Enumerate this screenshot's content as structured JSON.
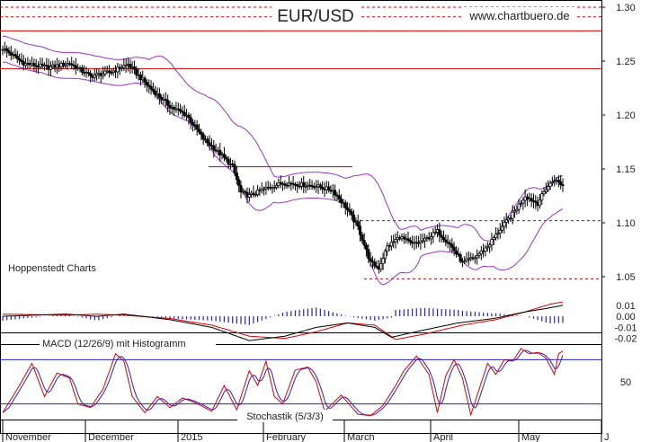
{
  "title": "EUR/USD",
  "watermark": "www.chartbuero.de",
  "source_label": "Hoppenstedt Charts",
  "colors": {
    "background": "#ffffff",
    "candle": "#000000",
    "bollinger": "#9933cc",
    "resistance": "#cc0000",
    "macd": "#000000",
    "signal": "#dd0000",
    "histogram": "#2222cc",
    "stoch_k": "#dd0000",
    "stoch_d": "#2222cc",
    "stoch_band": "#2222cc"
  },
  "chart_data": [
    {
      "type": "candlestick",
      "title": "EUR/USD",
      "x_ticks": [
        "November",
        "December",
        "2015",
        "February",
        "March",
        "April",
        "May",
        "J"
      ],
      "ylim": [
        1.015,
        1.305
      ],
      "y_ticks": [
        1.05,
        1.1,
        1.15,
        1.2,
        1.25,
        1.3
      ],
      "grid": false,
      "overlays": [
        "Bollinger Bands"
      ],
      "horizontal_lines": [
        {
          "value": 1.3,
          "style": "dashed"
        },
        {
          "value": 1.291,
          "style": "dashed"
        },
        {
          "value": 1.278,
          "style": "solid"
        },
        {
          "value": 1.243,
          "style": "solid"
        },
        {
          "value": 1.152,
          "style": "solid",
          "partial": true
        },
        {
          "value": 1.102,
          "style": "dashed"
        },
        {
          "value": 1.048,
          "style": "dashed"
        }
      ],
      "close_waypoints": [
        [
          0,
          1.262
        ],
        [
          10,
          1.248
        ],
        [
          22,
          1.244
        ],
        [
          32,
          1.248
        ],
        [
          42,
          1.236
        ],
        [
          52,
          1.24
        ],
        [
          60,
          1.247
        ],
        [
          70,
          1.226
        ],
        [
          80,
          1.208
        ],
        [
          88,
          1.2
        ],
        [
          96,
          1.178
        ],
        [
          104,
          1.164
        ],
        [
          110,
          1.152
        ],
        [
          114,
          1.128
        ],
        [
          118,
          1.125
        ],
        [
          126,
          1.132
        ],
        [
          134,
          1.137
        ],
        [
          140,
          1.136
        ],
        [
          150,
          1.134
        ],
        [
          158,
          1.13
        ],
        [
          164,
          1.115
        ],
        [
          170,
          1.096
        ],
        [
          176,
          1.063
        ],
        [
          180,
          1.058
        ],
        [
          184,
          1.078
        ],
        [
          190,
          1.087
        ],
        [
          196,
          1.08
        ],
        [
          202,
          1.084
        ],
        [
          208,
          1.092
        ],
        [
          214,
          1.08
        ],
        [
          220,
          1.063
        ],
        [
          226,
          1.068
        ],
        [
          232,
          1.078
        ],
        [
          238,
          1.094
        ],
        [
          244,
          1.108
        ],
        [
          250,
          1.125
        ],
        [
          256,
          1.118
        ],
        [
          260,
          1.132
        ],
        [
          264,
          1.14
        ],
        [
          268,
          1.135
        ]
      ]
    },
    {
      "type": "line",
      "title": "MACD (12/26/9) mit Histogramm",
      "y_ticks": [
        0.01,
        0.0,
        -0.01,
        -0.02
      ],
      "ylim": [
        -0.03,
        0.022
      ],
      "series_names": [
        "MACD",
        "Signal",
        "Histogramm"
      ],
      "macd_waypoints": [
        [
          0,
          0.0
        ],
        [
          30,
          0.002
        ],
        [
          45,
          0.0
        ],
        [
          58,
          0.002
        ],
        [
          80,
          -0.003
        ],
        [
          100,
          -0.01
        ],
        [
          118,
          -0.022
        ],
        [
          135,
          -0.018
        ],
        [
          150,
          -0.01
        ],
        [
          165,
          -0.006
        ],
        [
          178,
          -0.01
        ],
        [
          186,
          -0.019
        ],
        [
          200,
          -0.013
        ],
        [
          218,
          -0.006
        ],
        [
          235,
          -0.002
        ],
        [
          250,
          0.004
        ],
        [
          260,
          0.007
        ],
        [
          268,
          0.01
        ]
      ],
      "signal_waypoints": [
        [
          0,
          0.002
        ],
        [
          30,
          0.001
        ],
        [
          45,
          0.002
        ],
        [
          58,
          0.001
        ],
        [
          80,
          -0.002
        ],
        [
          100,
          -0.008
        ],
        [
          118,
          -0.018
        ],
        [
          135,
          -0.02
        ],
        [
          150,
          -0.014
        ],
        [
          165,
          -0.006
        ],
        [
          178,
          -0.008
        ],
        [
          188,
          -0.021
        ],
        [
          202,
          -0.016
        ],
        [
          220,
          -0.008
        ],
        [
          236,
          -0.003
        ],
        [
          250,
          0.004
        ],
        [
          262,
          0.011
        ],
        [
          268,
          0.013
        ]
      ]
    },
    {
      "type": "line",
      "title": "Stochastik (5/3/3)",
      "ylim": [
        0,
        100
      ],
      "y_ticks": [
        50
      ],
      "bands": [
        20,
        80
      ],
      "series_names": [
        "%K",
        "%D"
      ],
      "k_waypoints": [
        [
          0,
          8
        ],
        [
          8,
          45
        ],
        [
          14,
          75
        ],
        [
          20,
          30
        ],
        [
          26,
          62
        ],
        [
          32,
          55
        ],
        [
          36,
          20
        ],
        [
          42,
          15
        ],
        [
          48,
          40
        ],
        [
          54,
          88
        ],
        [
          58,
          78
        ],
        [
          62,
          30
        ],
        [
          68,
          8
        ],
        [
          74,
          30
        ],
        [
          80,
          15
        ],
        [
          86,
          28
        ],
        [
          92,
          22
        ],
        [
          100,
          10
        ],
        [
          106,
          45
        ],
        [
          112,
          12
        ],
        [
          118,
          65
        ],
        [
          122,
          45
        ],
        [
          126,
          78
        ],
        [
          130,
          30
        ],
        [
          134,
          20
        ],
        [
          140,
          66
        ],
        [
          146,
          70
        ],
        [
          150,
          50
        ],
        [
          154,
          10
        ],
        [
          162,
          32
        ],
        [
          170,
          6
        ],
        [
          176,
          4
        ],
        [
          182,
          18
        ],
        [
          188,
          45
        ],
        [
          192,
          65
        ],
        [
          198,
          85
        ],
        [
          204,
          60
        ],
        [
          208,
          8
        ],
        [
          212,
          58
        ],
        [
          216,
          80
        ],
        [
          220,
          55
        ],
        [
          224,
          5
        ],
        [
          228,
          40
        ],
        [
          232,
          75
        ],
        [
          236,
          60
        ],
        [
          240,
          80
        ],
        [
          244,
          78
        ],
        [
          248,
          95
        ],
        [
          252,
          88
        ],
        [
          256,
          90
        ],
        [
          260,
          82
        ],
        [
          264,
          60
        ],
        [
          266,
          88
        ],
        [
          268,
          92
        ]
      ]
    }
  ]
}
